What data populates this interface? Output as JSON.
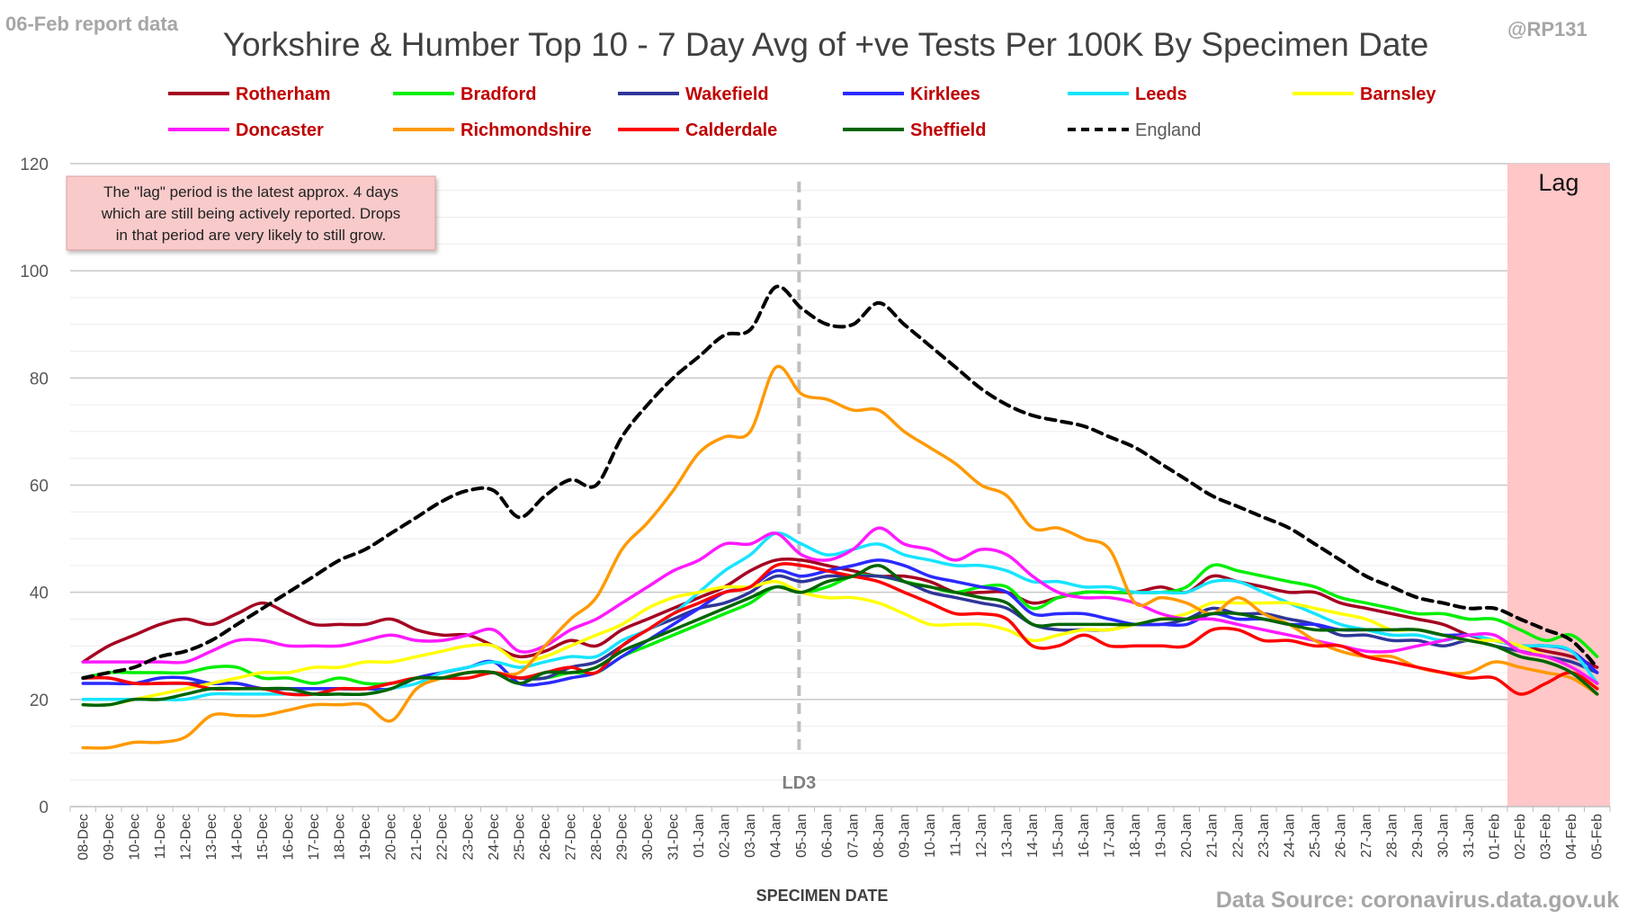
{
  "header": {
    "report_label": "06-Feb report data",
    "handle": "@RP131",
    "source": "Data Source: coronavirus.data.gov.uk"
  },
  "colors": {
    "background": "#ffffff",
    "grid": "#d9d9d9",
    "lag_band": "#ffc7c7",
    "annotation_box": "#f8caca",
    "legend_text": "#c00000"
  },
  "annotations": {
    "lag_note": [
      "The \"lag\" period is the latest approx. 4 days",
      "which are still being actively reported. Drops",
      "in that period are very likely to still grow."
    ],
    "lag_label": "Lag",
    "lockdown_label": "LD3",
    "lockdown_date": "05-Jan"
  },
  "chart_data": {
    "type": "line",
    "title": "Yorkshire & Humber Top 10 - 7 Day Avg of +ve Tests Per 100K By Specimen Date",
    "xlabel": "SPECIMEN DATE",
    "ylabel": "",
    "ylim": [
      0,
      120
    ],
    "yticks": [
      0,
      20,
      40,
      60,
      80,
      100,
      120
    ],
    "grid": true,
    "legend_position": "top",
    "lag_start": "02-Feb",
    "x": [
      "08-Dec",
      "09-Dec",
      "10-Dec",
      "11-Dec",
      "12-Dec",
      "13-Dec",
      "14-Dec",
      "15-Dec",
      "16-Dec",
      "17-Dec",
      "18-Dec",
      "19-Dec",
      "20-Dec",
      "21-Dec",
      "22-Dec",
      "23-Dec",
      "24-Dec",
      "25-Dec",
      "26-Dec",
      "27-Dec",
      "28-Dec",
      "29-Dec",
      "30-Dec",
      "31-Dec",
      "01-Jan",
      "02-Jan",
      "03-Jan",
      "04-Jan",
      "05-Jan",
      "06-Jan",
      "07-Jan",
      "08-Jan",
      "09-Jan",
      "10-Jan",
      "11-Jan",
      "12-Jan",
      "13-Jan",
      "14-Jan",
      "15-Jan",
      "16-Jan",
      "17-Jan",
      "18-Jan",
      "19-Jan",
      "20-Jan",
      "21-Jan",
      "22-Jan",
      "23-Jan",
      "24-Jan",
      "25-Jan",
      "26-Jan",
      "27-Jan",
      "28-Jan",
      "29-Jan",
      "30-Jan",
      "31-Jan",
      "01-Feb",
      "02-Feb",
      "03-Feb",
      "04-Feb",
      "05-Feb"
    ],
    "series": [
      {
        "name": "Rotherham",
        "color": "#a50021",
        "dash": false,
        "values": [
          27,
          30,
          32,
          34,
          35,
          34,
          36,
          38,
          36,
          34,
          34,
          34,
          35,
          33,
          32,
          32,
          30,
          28,
          29,
          31,
          30,
          33,
          35,
          37,
          39,
          41,
          44,
          46,
          46,
          45,
          44,
          43,
          43,
          42,
          40,
          40,
          40,
          38,
          39,
          40,
          40,
          40,
          41,
          40,
          43,
          42,
          41,
          40,
          40,
          38,
          37,
          36,
          35,
          34,
          32,
          31,
          30,
          29,
          28,
          26
        ]
      },
      {
        "name": "Bradford",
        "color": "#00ee00",
        "dash": false,
        "values": [
          24,
          25,
          25,
          25,
          25,
          26,
          26,
          24,
          24,
          23,
          24,
          23,
          23,
          24,
          24,
          25,
          25,
          24,
          24,
          25,
          25,
          28,
          30,
          32,
          34,
          36,
          38,
          41,
          40,
          41,
          43,
          43,
          42,
          41,
          40,
          41,
          41,
          37,
          39,
          40,
          40,
          40,
          40,
          41,
          45,
          44,
          43,
          42,
          41,
          39,
          38,
          37,
          36,
          36,
          35,
          35,
          33,
          31,
          32,
          28
        ]
      },
      {
        "name": "Wakefield",
        "color": "#2f3699",
        "dash": false,
        "values": [
          24,
          24,
          23,
          23,
          23,
          23,
          23,
          22,
          22,
          22,
          22,
          22,
          23,
          24,
          24,
          25,
          25,
          24,
          24,
          26,
          27,
          30,
          33,
          35,
          37,
          38,
          40,
          43,
          42,
          43,
          43,
          43,
          42,
          40,
          39,
          38,
          37,
          34,
          33,
          33,
          33,
          34,
          34,
          35,
          37,
          36,
          36,
          35,
          34,
          32,
          32,
          31,
          31,
          30,
          31,
          30,
          29,
          28,
          27,
          25
        ]
      },
      {
        "name": "Kirklees",
        "color": "#2a2aff",
        "dash": false,
        "values": [
          23,
          23,
          23,
          24,
          24,
          23,
          23,
          22,
          22,
          22,
          22,
          22,
          22,
          24,
          25,
          26,
          27,
          23,
          23,
          24,
          25,
          28,
          31,
          34,
          37,
          40,
          41,
          44,
          43,
          44,
          45,
          46,
          45,
          43,
          42,
          41,
          40,
          36,
          36,
          36,
          35,
          34,
          34,
          34,
          36,
          35,
          35,
          34,
          34,
          33,
          33,
          33,
          33,
          32,
          32,
          31,
          30,
          30,
          29,
          25
        ]
      },
      {
        "name": "Leeds",
        "color": "#17e4ff",
        "dash": false,
        "values": [
          20,
          20,
          20,
          20,
          20,
          21,
          21,
          21,
          21,
          21,
          21,
          21,
          22,
          23,
          25,
          26,
          27,
          26,
          27,
          28,
          28,
          31,
          33,
          36,
          40,
          44,
          47,
          51,
          49,
          47,
          48,
          49,
          47,
          46,
          45,
          45,
          44,
          42,
          42,
          41,
          41,
          40,
          40,
          40,
          42,
          42,
          40,
          38,
          36,
          34,
          33,
          32,
          32,
          31,
          32,
          31,
          30,
          30,
          29,
          23
        ]
      },
      {
        "name": "Barnsley",
        "color": "#ffff00",
        "dash": false,
        "values": [
          19,
          19,
          20,
          21,
          22,
          23,
          24,
          25,
          25,
          26,
          26,
          27,
          27,
          28,
          29,
          30,
          30,
          27,
          28,
          30,
          32,
          34,
          37,
          39,
          40,
          41,
          41,
          42,
          40,
          39,
          39,
          38,
          36,
          34,
          34,
          34,
          33,
          31,
          32,
          33,
          33,
          34,
          35,
          36,
          38,
          38,
          38,
          38,
          37,
          36,
          35,
          33,
          33,
          32,
          31,
          31,
          30,
          28,
          26,
          22
        ]
      },
      {
        "name": "Doncaster",
        "color": "#ff1aff",
        "dash": false,
        "values": [
          27,
          27,
          27,
          27,
          27,
          29,
          31,
          31,
          30,
          30,
          30,
          31,
          32,
          31,
          31,
          32,
          33,
          29,
          30,
          33,
          35,
          38,
          41,
          44,
          46,
          49,
          49,
          51,
          47,
          46,
          48,
          52,
          49,
          48,
          46,
          48,
          47,
          43,
          40,
          39,
          39,
          38,
          36,
          35,
          35,
          34,
          33,
          32,
          31,
          30,
          29,
          29,
          30,
          31,
          32,
          32,
          29,
          28,
          26,
          23
        ]
      },
      {
        "name": "Richmondshire",
        "color": "#ff9900",
        "dash": false,
        "values": [
          11,
          11,
          12,
          12,
          13,
          17,
          17,
          17,
          18,
          19,
          19,
          19,
          16,
          22,
          24,
          25,
          25,
          25,
          30,
          35,
          39,
          48,
          53,
          59,
          66,
          69,
          70,
          82,
          77,
          76,
          74,
          74,
          70,
          67,
          64,
          60,
          58,
          52,
          52,
          50,
          48,
          38,
          39,
          38,
          36,
          39,
          36,
          34,
          31,
          29,
          28,
          28,
          26,
          25,
          25,
          27,
          26,
          25,
          24,
          21
        ]
      },
      {
        "name": "Calderdale",
        "color": "#ff0000",
        "dash": false,
        "values": [
          24,
          24,
          23,
          23,
          23,
          22,
          22,
          22,
          21,
          21,
          22,
          22,
          23,
          24,
          24,
          24,
          25,
          24,
          25,
          26,
          25,
          30,
          33,
          36,
          38,
          40,
          41,
          45,
          45,
          44,
          43,
          42,
          40,
          38,
          36,
          36,
          35,
          30,
          30,
          32,
          30,
          30,
          30,
          30,
          33,
          33,
          31,
          31,
          30,
          30,
          28,
          27,
          26,
          25,
          24,
          24,
          21,
          23,
          25,
          22
        ]
      },
      {
        "name": "Sheffield",
        "color": "#006400",
        "dash": false,
        "values": [
          19,
          19,
          20,
          20,
          21,
          22,
          22,
          22,
          22,
          21,
          21,
          21,
          22,
          24,
          24,
          25,
          25,
          23,
          25,
          25,
          26,
          29,
          31,
          33,
          35,
          37,
          39,
          41,
          40,
          42,
          43,
          45,
          42,
          41,
          40,
          39,
          38,
          34,
          34,
          34,
          34,
          34,
          35,
          35,
          36,
          36,
          35,
          34,
          33,
          33,
          33,
          33,
          33,
          32,
          31,
          30,
          28,
          27,
          25,
          21
        ]
      },
      {
        "name": "England",
        "color": "#000000",
        "dash": true,
        "values": [
          24,
          25,
          26,
          28,
          29,
          31,
          34,
          37,
          40,
          43,
          46,
          48,
          51,
          54,
          57,
          59,
          59,
          54,
          58,
          61,
          60,
          69,
          75,
          80,
          84,
          88,
          89,
          97,
          93,
          90,
          90,
          94,
          90,
          86,
          82,
          78,
          75,
          73,
          72,
          71,
          69,
          67,
          64,
          61,
          58,
          56,
          54,
          52,
          49,
          46,
          43,
          41,
          39,
          38,
          37,
          37,
          35,
          33,
          31,
          26
        ]
      }
    ]
  }
}
